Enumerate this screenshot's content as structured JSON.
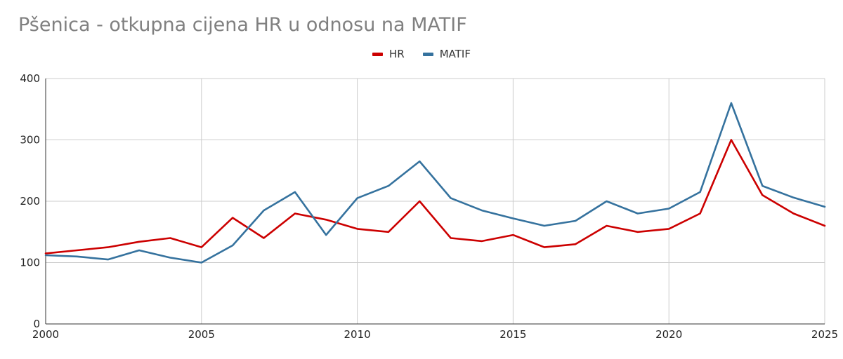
{
  "chart_data": {
    "type": "line",
    "title": "Pšenica - otkupna cijena HR u odnosu na MATIF",
    "xlabel": "",
    "ylabel": "",
    "xlim": [
      2000,
      2025
    ],
    "ylim": [
      0,
      400
    ],
    "x_ticks": [
      2000,
      2005,
      2010,
      2015,
      2020,
      2025
    ],
    "y_ticks": [
      0,
      100,
      200,
      300,
      400
    ],
    "grid": true,
    "legend": "top-center",
    "x": [
      2000,
      2001,
      2002,
      2003,
      2004,
      2005,
      2006,
      2007,
      2008,
      2009,
      2010,
      2011,
      2012,
      2013,
      2014,
      2015,
      2016,
      2017,
      2018,
      2019,
      2020,
      2021,
      2022,
      2023,
      2024,
      2025
    ],
    "series": [
      {
        "name": "HR",
        "color": "#cc0000",
        "values": [
          115,
          120,
          125,
          134,
          140,
          125,
          173,
          140,
          180,
          170,
          155,
          150,
          200,
          140,
          135,
          145,
          125,
          130,
          160,
          150,
          155,
          180,
          300,
          210,
          180,
          160
        ]
      },
      {
        "name": "MATIF",
        "color": "#35729e",
        "values": [
          112,
          110,
          105,
          120,
          108,
          100,
          128,
          185,
          215,
          145,
          205,
          225,
          265,
          205,
          185,
          172,
          160,
          168,
          200,
          180,
          188,
          215,
          360,
          225,
          206,
          191
        ]
      }
    ]
  }
}
